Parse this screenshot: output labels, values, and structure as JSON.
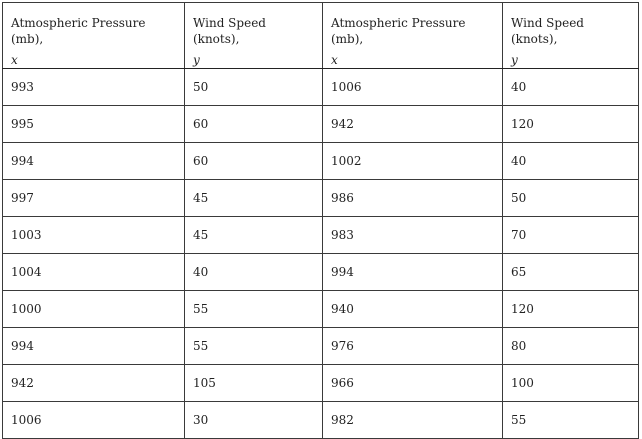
{
  "table": {
    "headers": [
      {
        "label": "Atmospheric Pressure (mb),",
        "var": "x"
      },
      {
        "label": "Wind Speed (knots),",
        "var": "y"
      },
      {
        "label": "Atmospheric Pressure (mb),",
        "var": "x"
      },
      {
        "label": "Wind Speed (knots),",
        "var": "y"
      }
    ],
    "rows": [
      [
        "993",
        "50",
        "1006",
        "40"
      ],
      [
        "995",
        "60",
        "942",
        "120"
      ],
      [
        "994",
        "60",
        "1002",
        "40"
      ],
      [
        "997",
        "45",
        "986",
        "50"
      ],
      [
        "1003",
        "45",
        "983",
        "70"
      ],
      [
        "1004",
        "40",
        "994",
        "65"
      ],
      [
        "1000",
        "55",
        "940",
        "120"
      ],
      [
        "994",
        "55",
        "976",
        "80"
      ],
      [
        "942",
        "105",
        "966",
        "100"
      ],
      [
        "1006",
        "30",
        "982",
        "55"
      ]
    ]
  }
}
